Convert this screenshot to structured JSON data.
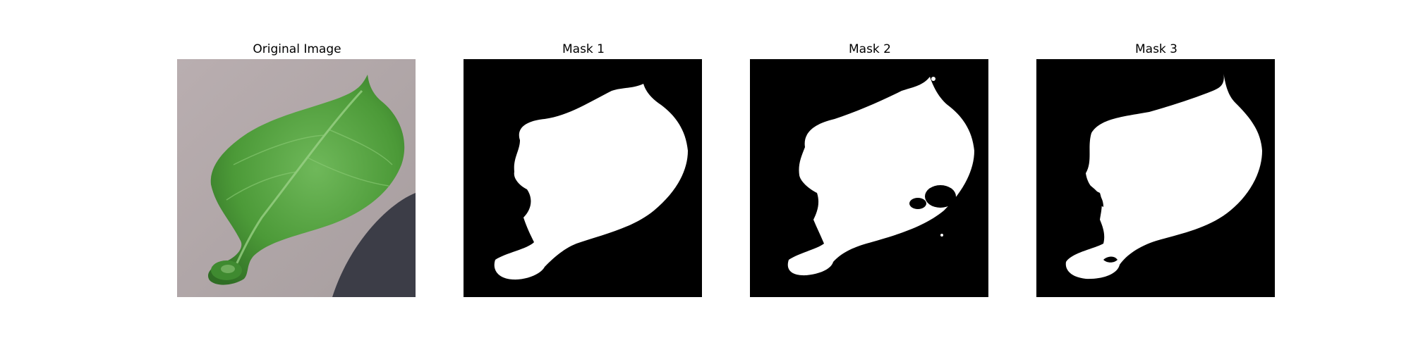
{
  "figure": {
    "panels": [
      {
        "title": "Original Image"
      },
      {
        "title": "Mask 1"
      },
      {
        "title": "Mask 2"
      },
      {
        "title": "Mask 3"
      }
    ]
  },
  "colors": {
    "background": "#ffffff",
    "mask_background": "#000000",
    "mask_foreground": "#ffffff",
    "leaf_green": "#4f9a3a",
    "surface": "#b3a9aa",
    "shadow": "#3a3b45"
  }
}
